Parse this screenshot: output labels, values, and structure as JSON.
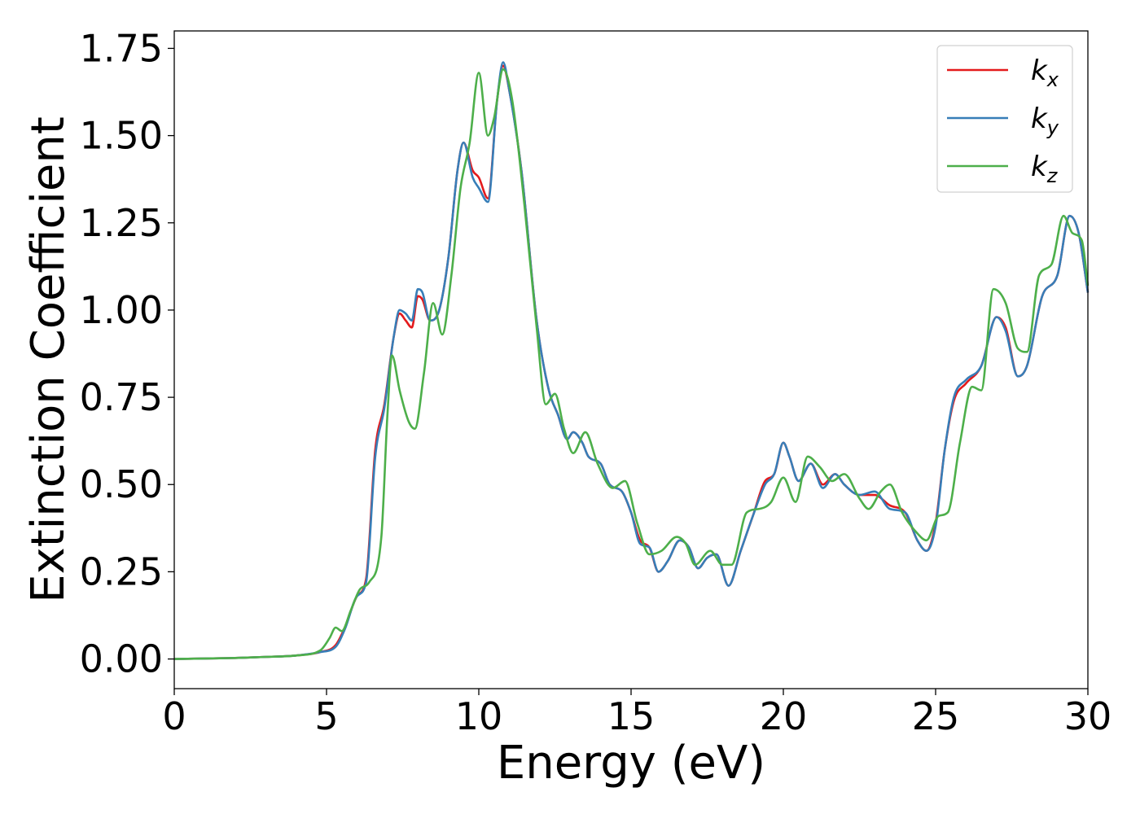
{
  "chart_data": {
    "type": "line",
    "xlabel": "Energy (eV)",
    "ylabel": "Extinction Coefficient",
    "xlim": [
      0,
      30
    ],
    "ylim": [
      -0.085,
      1.8
    ],
    "x_ticks": [
      0,
      5,
      10,
      15,
      20,
      25,
      30
    ],
    "x_tick_labels": [
      "0",
      "5",
      "10",
      "15",
      "20",
      "25",
      "30"
    ],
    "y_ticks": [
      0,
      0.25,
      0.5,
      0.75,
      1.0,
      1.25,
      1.5,
      1.75
    ],
    "y_tick_labels": [
      "0.00",
      "0.25",
      "0.50",
      "0.75",
      "1.00",
      "1.25",
      "1.50",
      "1.75"
    ],
    "grid": false,
    "legend_position": "top-right",
    "series": [
      {
        "name": "kx",
        "legend_base": "k",
        "legend_sub": "x",
        "color": "#e41a1c",
        "points": [
          [
            0,
            0
          ],
          [
            2,
            0.003
          ],
          [
            3,
            0.006
          ],
          [
            4,
            0.01
          ],
          [
            4.8,
            0.02
          ],
          [
            5.3,
            0.04
          ],
          [
            5.6,
            0.09
          ],
          [
            6.0,
            0.18
          ],
          [
            6.3,
            0.23
          ],
          [
            6.6,
            0.6
          ],
          [
            6.9,
            0.73
          ],
          [
            7.2,
            0.92
          ],
          [
            7.4,
            0.99
          ],
          [
            7.6,
            0.97
          ],
          [
            7.8,
            0.95
          ],
          [
            8.0,
            1.04
          ],
          [
            8.15,
            1.03
          ],
          [
            8.4,
            0.97
          ],
          [
            8.7,
            1.0
          ],
          [
            9.0,
            1.15
          ],
          [
            9.3,
            1.4
          ],
          [
            9.5,
            1.48
          ],
          [
            9.8,
            1.4
          ],
          [
            10.0,
            1.38
          ],
          [
            10.3,
            1.32
          ],
          [
            10.6,
            1.6
          ],
          [
            10.8,
            1.7
          ],
          [
            11.0,
            1.63
          ],
          [
            11.4,
            1.4
          ],
          [
            11.9,
            0.97
          ],
          [
            12.3,
            0.77
          ],
          [
            12.6,
            0.7
          ],
          [
            12.9,
            0.63
          ],
          [
            13.1,
            0.65
          ],
          [
            13.4,
            0.62
          ],
          [
            13.6,
            0.58
          ],
          [
            14.0,
            0.56
          ],
          [
            14.3,
            0.5
          ],
          [
            14.7,
            0.48
          ],
          [
            15.0,
            0.42
          ],
          [
            15.3,
            0.34
          ],
          [
            15.6,
            0.32
          ],
          [
            15.9,
            0.25
          ],
          [
            16.2,
            0.28
          ],
          [
            16.6,
            0.34
          ],
          [
            16.9,
            0.32
          ],
          [
            17.2,
            0.26
          ],
          [
            17.5,
            0.29
          ],
          [
            17.8,
            0.3
          ],
          [
            18.2,
            0.21
          ],
          [
            18.6,
            0.31
          ],
          [
            19.0,
            0.41
          ],
          [
            19.4,
            0.51
          ],
          [
            19.7,
            0.53
          ],
          [
            20.0,
            0.62
          ],
          [
            20.2,
            0.58
          ],
          [
            20.5,
            0.51
          ],
          [
            20.9,
            0.56
          ],
          [
            21.3,
            0.5
          ],
          [
            21.7,
            0.53
          ],
          [
            22.0,
            0.5
          ],
          [
            22.5,
            0.47
          ],
          [
            23.0,
            0.47
          ],
          [
            23.5,
            0.44
          ],
          [
            24.0,
            0.42
          ],
          [
            24.4,
            0.34
          ],
          [
            24.7,
            0.31
          ],
          [
            25.0,
            0.39
          ],
          [
            25.3,
            0.6
          ],
          [
            25.6,
            0.74
          ],
          [
            26.0,
            0.79
          ],
          [
            26.5,
            0.84
          ],
          [
            27.0,
            0.98
          ],
          [
            27.3,
            0.95
          ],
          [
            27.7,
            0.81
          ],
          [
            28.0,
            0.84
          ],
          [
            28.5,
            1.04
          ],
          [
            29.0,
            1.1
          ],
          [
            29.4,
            1.27
          ],
          [
            29.7,
            1.22
          ],
          [
            30.0,
            1.05
          ]
        ]
      },
      {
        "name": "ky",
        "legend_base": "k",
        "legend_sub": "y",
        "color": "#377eb8",
        "points": [
          [
            0,
            0
          ],
          [
            2,
            0.003
          ],
          [
            3,
            0.006
          ],
          [
            4,
            0.01
          ],
          [
            4.8,
            0.02
          ],
          [
            5.3,
            0.035
          ],
          [
            5.6,
            0.085
          ],
          [
            6.0,
            0.18
          ],
          [
            6.3,
            0.22
          ],
          [
            6.6,
            0.58
          ],
          [
            6.9,
            0.72
          ],
          [
            7.2,
            0.92
          ],
          [
            7.4,
            1.0
          ],
          [
            7.6,
            0.99
          ],
          [
            7.8,
            0.97
          ],
          [
            8.0,
            1.06
          ],
          [
            8.15,
            1.05
          ],
          [
            8.4,
            0.97
          ],
          [
            8.7,
            1.0
          ],
          [
            9.0,
            1.15
          ],
          [
            9.3,
            1.4
          ],
          [
            9.5,
            1.48
          ],
          [
            9.8,
            1.38
          ],
          [
            10.0,
            1.35
          ],
          [
            10.3,
            1.31
          ],
          [
            10.6,
            1.6
          ],
          [
            10.8,
            1.71
          ],
          [
            11.0,
            1.63
          ],
          [
            11.4,
            1.4
          ],
          [
            11.9,
            0.97
          ],
          [
            12.3,
            0.77
          ],
          [
            12.6,
            0.7
          ],
          [
            12.9,
            0.63
          ],
          [
            13.1,
            0.65
          ],
          [
            13.4,
            0.62
          ],
          [
            13.6,
            0.58
          ],
          [
            14.0,
            0.56
          ],
          [
            14.3,
            0.5
          ],
          [
            14.7,
            0.48
          ],
          [
            15.0,
            0.42
          ],
          [
            15.3,
            0.33
          ],
          [
            15.6,
            0.32
          ],
          [
            15.9,
            0.25
          ],
          [
            16.2,
            0.28
          ],
          [
            16.6,
            0.34
          ],
          [
            16.9,
            0.32
          ],
          [
            17.2,
            0.26
          ],
          [
            17.5,
            0.29
          ],
          [
            17.8,
            0.3
          ],
          [
            18.2,
            0.21
          ],
          [
            18.6,
            0.31
          ],
          [
            19.0,
            0.41
          ],
          [
            19.4,
            0.5
          ],
          [
            19.7,
            0.53
          ],
          [
            20.0,
            0.62
          ],
          [
            20.2,
            0.58
          ],
          [
            20.5,
            0.51
          ],
          [
            20.9,
            0.56
          ],
          [
            21.3,
            0.49
          ],
          [
            21.7,
            0.53
          ],
          [
            22.0,
            0.5
          ],
          [
            22.5,
            0.47
          ],
          [
            23.0,
            0.48
          ],
          [
            23.5,
            0.43
          ],
          [
            24.0,
            0.42
          ],
          [
            24.4,
            0.34
          ],
          [
            24.7,
            0.31
          ],
          [
            25.0,
            0.38
          ],
          [
            25.3,
            0.6
          ],
          [
            25.6,
            0.75
          ],
          [
            26.0,
            0.8
          ],
          [
            26.5,
            0.84
          ],
          [
            27.0,
            0.98
          ],
          [
            27.3,
            0.94
          ],
          [
            27.7,
            0.81
          ],
          [
            28.0,
            0.84
          ],
          [
            28.5,
            1.04
          ],
          [
            29.0,
            1.1
          ],
          [
            29.4,
            1.27
          ],
          [
            29.7,
            1.22
          ],
          [
            30.0,
            1.05
          ]
        ]
      },
      {
        "name": "kz",
        "legend_base": "k",
        "legend_sub": "z",
        "color": "#4daf4a",
        "points": [
          [
            0,
            0
          ],
          [
            2,
            0.003
          ],
          [
            3,
            0.006
          ],
          [
            4,
            0.01
          ],
          [
            4.8,
            0.025
          ],
          [
            5.1,
            0.06
          ],
          [
            5.3,
            0.09
          ],
          [
            5.5,
            0.08
          ],
          [
            5.8,
            0.14
          ],
          [
            6.1,
            0.2
          ],
          [
            6.4,
            0.22
          ],
          [
            6.8,
            0.35
          ],
          [
            7.0,
            0.7
          ],
          [
            7.15,
            0.87
          ],
          [
            7.4,
            0.77
          ],
          [
            7.7,
            0.68
          ],
          [
            7.9,
            0.66
          ],
          [
            8.2,
            0.82
          ],
          [
            8.5,
            1.02
          ],
          [
            8.8,
            0.93
          ],
          [
            9.1,
            1.1
          ],
          [
            9.4,
            1.35
          ],
          [
            9.7,
            1.48
          ],
          [
            10.0,
            1.68
          ],
          [
            10.3,
            1.5
          ],
          [
            10.5,
            1.55
          ],
          [
            10.8,
            1.69
          ],
          [
            11.1,
            1.6
          ],
          [
            11.5,
            1.3
          ],
          [
            11.9,
            0.95
          ],
          [
            12.2,
            0.73
          ],
          [
            12.5,
            0.76
          ],
          [
            12.8,
            0.66
          ],
          [
            13.1,
            0.59
          ],
          [
            13.5,
            0.65
          ],
          [
            13.9,
            0.56
          ],
          [
            14.4,
            0.49
          ],
          [
            14.8,
            0.51
          ],
          [
            15.2,
            0.39
          ],
          [
            15.6,
            0.3
          ],
          [
            16.0,
            0.31
          ],
          [
            16.5,
            0.35
          ],
          [
            16.8,
            0.33
          ],
          [
            17.1,
            0.27
          ],
          [
            17.6,
            0.31
          ],
          [
            18.0,
            0.27
          ],
          [
            18.3,
            0.27
          ],
          [
            18.8,
            0.42
          ],
          [
            19.2,
            0.43
          ],
          [
            19.6,
            0.45
          ],
          [
            20.0,
            0.52
          ],
          [
            20.4,
            0.45
          ],
          [
            20.8,
            0.58
          ],
          [
            21.2,
            0.55
          ],
          [
            21.6,
            0.51
          ],
          [
            22.0,
            0.53
          ],
          [
            22.5,
            0.46
          ],
          [
            22.8,
            0.43
          ],
          [
            23.2,
            0.48
          ],
          [
            23.5,
            0.5
          ],
          [
            23.9,
            0.42
          ],
          [
            24.4,
            0.36
          ],
          [
            24.7,
            0.34
          ],
          [
            25.1,
            0.41
          ],
          [
            25.4,
            0.42
          ],
          [
            25.8,
            0.62
          ],
          [
            26.2,
            0.78
          ],
          [
            26.5,
            0.77
          ],
          [
            26.9,
            1.06
          ],
          [
            27.3,
            1.02
          ],
          [
            27.7,
            0.89
          ],
          [
            28.0,
            0.88
          ],
          [
            28.4,
            1.1
          ],
          [
            28.8,
            1.13
          ],
          [
            29.2,
            1.27
          ],
          [
            29.5,
            1.22
          ],
          [
            29.8,
            1.2
          ],
          [
            30.0,
            1.07
          ]
        ]
      }
    ]
  }
}
